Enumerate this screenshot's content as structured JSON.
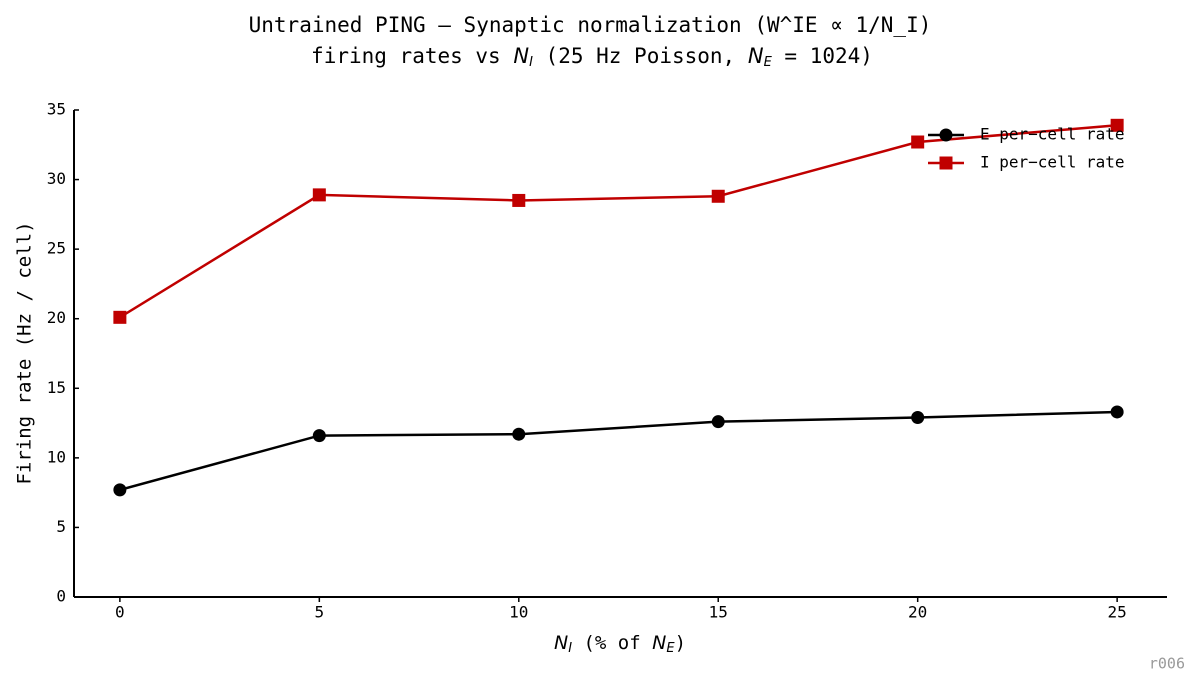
{
  "chart_data": {
    "type": "line",
    "title": "Untrained PING — Synaptic normalization (W^IE ∝ 1/N_I)",
    "subtitle_parts": [
      "firing rates vs ",
      "N",
      "I",
      " (25 Hz Poisson, ",
      "N",
      "E",
      " = 1024)"
    ],
    "xlabel_parts": [
      "N",
      "I",
      " (% of ",
      "N",
      "E",
      ")"
    ],
    "ylabel": "Firing rate (Hz / cell)",
    "x": [
      0,
      5,
      10,
      15,
      20,
      25
    ],
    "series": [
      {
        "name": "E per−cell rate",
        "color": "#000000",
        "marker": "circle",
        "values": [
          7.7,
          11.6,
          11.7,
          12.6,
          12.9,
          13.3
        ]
      },
      {
        "name": "I per−cell rate",
        "color": "#c00000",
        "marker": "square",
        "values": [
          20.1,
          28.9,
          28.5,
          28.8,
          32.7,
          33.9
        ]
      }
    ],
    "xlim": [
      -1.15,
      26.25
    ],
    "xticks": [
      0,
      5,
      10,
      15,
      20,
      25
    ],
    "ylim": [
      0,
      35
    ],
    "yticks": [
      0,
      5,
      10,
      15,
      20,
      25,
      30,
      35
    ],
    "legend": "upper right",
    "annotation": "r006"
  }
}
